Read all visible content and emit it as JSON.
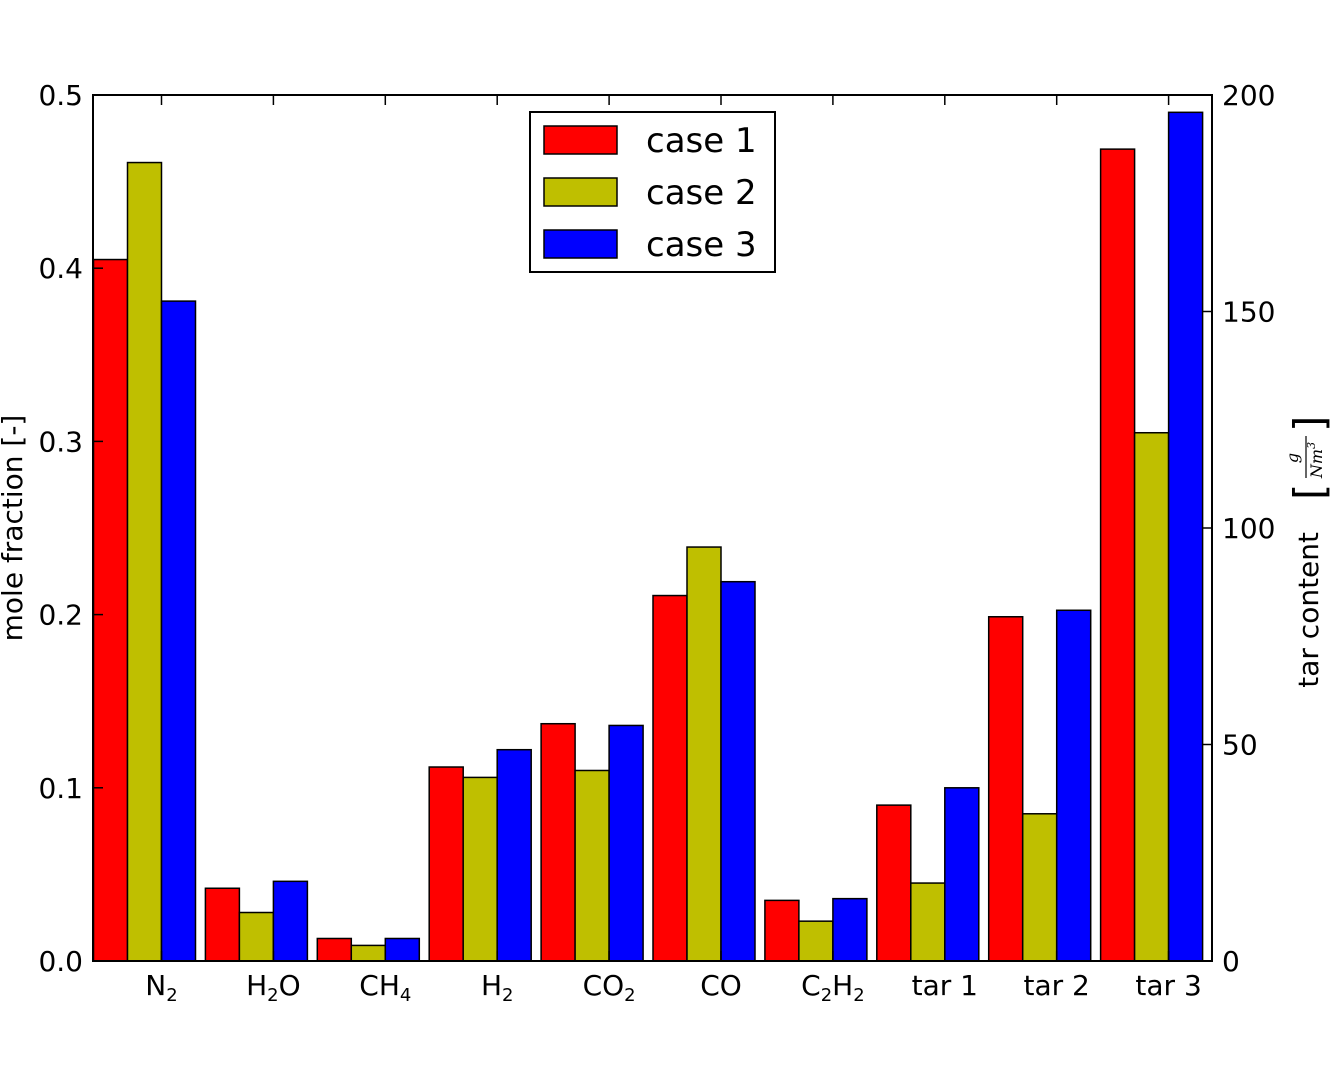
{
  "chart_data": {
    "type": "bar",
    "categories": [
      {
        "base": "N",
        "sub": "2",
        "rest": ""
      },
      {
        "base": "H",
        "sub": "2",
        "rest": "O"
      },
      {
        "base": "CH",
        "sub": "4",
        "rest": ""
      },
      {
        "base": "H",
        "sub": "2",
        "rest": ""
      },
      {
        "base": "CO",
        "sub": "2",
        "rest": ""
      },
      {
        "base": "CO",
        "sub": "",
        "rest": ""
      },
      {
        "base": "C",
        "sub": "2",
        "rest": "H",
        "sub2": "2"
      },
      {
        "base": "tar 1",
        "sub": "",
        "rest": ""
      },
      {
        "base": "tar 2",
        "sub": "",
        "rest": ""
      },
      {
        "base": "tar 3",
        "sub": "",
        "rest": ""
      }
    ],
    "series": [
      {
        "name": "case 1",
        "color": "#ff0000",
        "values": [
          0.405,
          0.042,
          0.013,
          0.112,
          0.137,
          0.211,
          0.035,
          36,
          79.5,
          187.5
        ]
      },
      {
        "name": "case 2",
        "color": "#bfbf00",
        "values": [
          0.461,
          0.028,
          0.009,
          0.106,
          0.11,
          0.239,
          0.023,
          18,
          34,
          122
        ]
      },
      {
        "name": "case 3",
        "color": "#0000ff",
        "values": [
          0.381,
          0.046,
          0.013,
          0.122,
          0.136,
          0.219,
          0.036,
          40,
          81,
          196
        ]
      }
    ],
    "left_axis": {
      "label": "mole fraction [-]",
      "ylim": [
        0,
        0.5
      ],
      "ticks": [
        "0.0",
        "0.1",
        "0.2",
        "0.3",
        "0.4",
        "0.5"
      ],
      "applies_to_categories": [
        0,
        1,
        2,
        3,
        4,
        5,
        6
      ]
    },
    "right_axis": {
      "label": "tar content",
      "unit_numerator": "g",
      "unit_denominator": "Nm",
      "unit_denominator_exp": "3",
      "ylim": [
        0,
        200
      ],
      "ticks": [
        "0",
        "50",
        "100",
        "150",
        "200"
      ],
      "applies_to_categories": [
        7,
        8,
        9
      ]
    },
    "legend_position": "top-center",
    "grid": false
  }
}
